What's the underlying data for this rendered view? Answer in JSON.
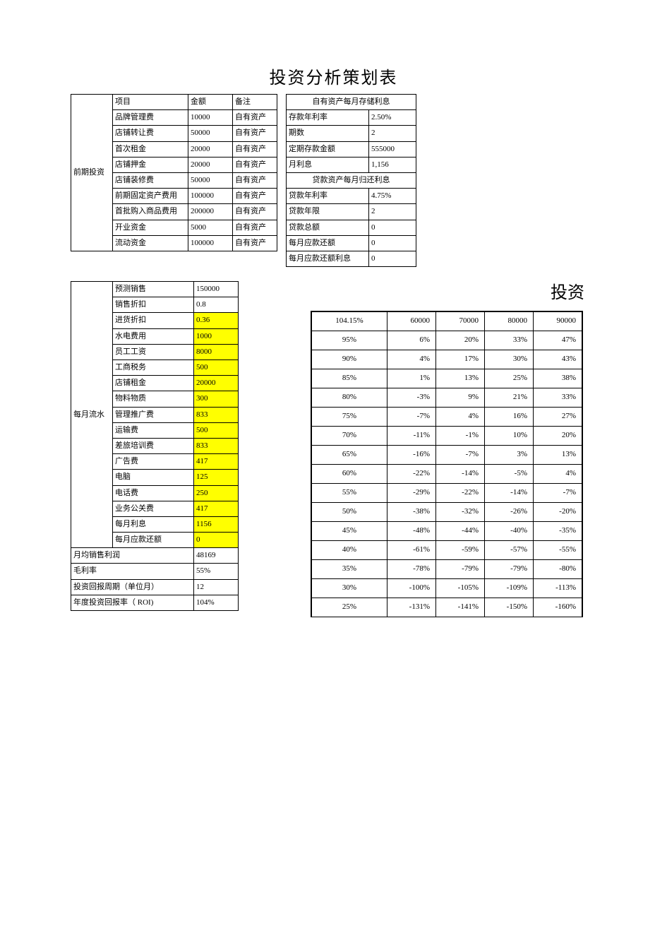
{
  "title": "投资分析策划表",
  "invest": {
    "section_label": "前期投资",
    "headers": {
      "item": "项目",
      "amount": "金额",
      "note": "备注"
    },
    "rows": [
      {
        "item": "品牌管理费",
        "amount": "10000",
        "note": "自有资产"
      },
      {
        "item": "店铺转让费",
        "amount": "50000",
        "note": "自有资产"
      },
      {
        "item": "首次租金",
        "amount": "20000",
        "note": "自有资产"
      },
      {
        "item": "店铺押金",
        "amount": "20000",
        "note": "自有资产"
      },
      {
        "item": "店铺装修费",
        "amount": "50000",
        "note": "自有资产"
      },
      {
        "item": "前期固定资产费用",
        "amount": "100000",
        "note": "自有资产"
      },
      {
        "item": "首批购入商品费用",
        "amount": "200000",
        "note": "自有资产"
      },
      {
        "item": "开业资金",
        "amount": "5000",
        "note": "自有资产"
      },
      {
        "item": "流动资金",
        "amount": "100000",
        "note": "自有资产"
      }
    ]
  },
  "savings": {
    "header": "自有资产每月存储利息",
    "rows": [
      {
        "k": "存款年利率",
        "v": "2.50%"
      },
      {
        "k": "期数",
        "v": "2"
      },
      {
        "k": "定期存款金额",
        "v": "555000"
      },
      {
        "k": "月利息",
        "v": "1,156"
      }
    ]
  },
  "loan": {
    "header": "贷款资产每月归还利息",
    "rows": [
      {
        "k": "贷款年利率",
        "v": "4.75%"
      },
      {
        "k": "贷款年限",
        "v": "2"
      },
      {
        "k": "贷款总额",
        "v": "0"
      },
      {
        "k": "每月应款还额",
        "v": "0"
      },
      {
        "k": "每月应款还额利息",
        "v": "0"
      }
    ]
  },
  "flow": {
    "section_label": "每月流水",
    "rows": [
      {
        "item": "预测销售",
        "val": "150000",
        "hl": false
      },
      {
        "item": "销售折扣",
        "val": "0.8",
        "hl": false
      },
      {
        "item": "进货折扣",
        "val": "0.36",
        "hl": true
      },
      {
        "item": "水电费用",
        "val": "1000",
        "hl": true
      },
      {
        "item": "员工工资",
        "val": "8000",
        "hl": true
      },
      {
        "item": "工商税务",
        "val": "500",
        "hl": true
      },
      {
        "item": "店铺租金",
        "val": "20000",
        "hl": true
      },
      {
        "item": "物料物质",
        "val": "300",
        "hl": true
      },
      {
        "item": "管理推广费",
        "val": "833",
        "hl": true
      },
      {
        "item": "运输费",
        "val": "500",
        "hl": true
      },
      {
        "item": "差旅培训费",
        "val": "833",
        "hl": true
      },
      {
        "item": "广告费",
        "val": "417",
        "hl": true
      },
      {
        "item": "电脑",
        "val": "125",
        "hl": true
      },
      {
        "item": "电话费",
        "val": "250",
        "hl": true
      },
      {
        "item": "业务公关费",
        "val": "417",
        "hl": true
      },
      {
        "item": "每月利息",
        "val": "1156",
        "hl": true
      },
      {
        "item": "每月应款还额",
        "val": "0",
        "hl": true
      }
    ],
    "summary": [
      {
        "k": "月均销售利润",
        "v": "48169"
      },
      {
        "k": "毛利率",
        "v": "55%"
      },
      {
        "k": "投资回报周期（单位月）",
        "v": "12"
      },
      {
        "k": "年度投资回报率（ ROI)",
        "v": "104%"
      }
    ]
  },
  "roi": {
    "title": "投资",
    "col_headers": [
      "104.15%",
      "60000",
      "70000",
      "80000",
      "90000"
    ],
    "rows": [
      [
        "95%",
        "6%",
        "20%",
        "33%",
        "47%"
      ],
      [
        "90%",
        "4%",
        "17%",
        "30%",
        "43%"
      ],
      [
        "85%",
        "1%",
        "13%",
        "25%",
        "38%"
      ],
      [
        "80%",
        "-3%",
        "9%",
        "21%",
        "33%"
      ],
      [
        "75%",
        "-7%",
        "4%",
        "16%",
        "27%"
      ],
      [
        "70%",
        "-11%",
        "-1%",
        "10%",
        "20%"
      ],
      [
        "65%",
        "-16%",
        "-7%",
        "3%",
        "13%"
      ],
      [
        "60%",
        "-22%",
        "-14%",
        "-5%",
        "4%"
      ],
      [
        "55%",
        "-29%",
        "-22%",
        "-14%",
        "-7%"
      ],
      [
        "50%",
        "-38%",
        "-32%",
        "-26%",
        "-20%"
      ],
      [
        "45%",
        "-48%",
        "-44%",
        "-40%",
        "-35%"
      ],
      [
        "40%",
        "-61%",
        "-59%",
        "-57%",
        "-55%"
      ],
      [
        "35%",
        "-78%",
        "-79%",
        "-79%",
        "-80%"
      ],
      [
        "30%",
        "-100%",
        "-105%",
        "-109%",
        "-113%"
      ],
      [
        "25%",
        "-131%",
        "-141%",
        "-150%",
        "-160%"
      ]
    ]
  },
  "colors": {
    "highlight": "#ffff00",
    "border": "#000000",
    "bg": "#ffffff",
    "text": "#000000"
  },
  "typography": {
    "title_fontsize": 24,
    "body_fontsize": 11,
    "font_family": "SimSun"
  }
}
